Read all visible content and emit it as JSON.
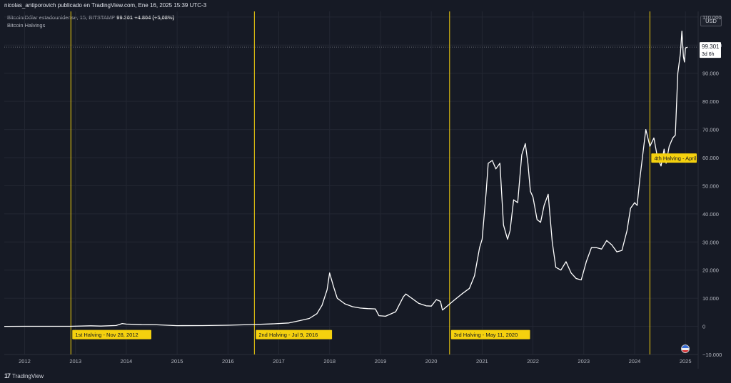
{
  "publisher_line": "nicolas_antiporovich publicado en TradingView.com, Ene 16, 2025 15:39 UTC-3",
  "legend": {
    "symbol": "Bitcoin/Dólar estadounidense, 15, BITSTAMP",
    "last_value": "99.301",
    "change": "+4.804 (+5,08%)",
    "indicator": "Bitcoin Halvings"
  },
  "currency": "USD",
  "price_label": {
    "value": "99.301",
    "countdown": "3d 6h"
  },
  "footer": {
    "logo_text": "TradingView",
    "logo_mark": "17"
  },
  "colors": {
    "background": "#161a25",
    "line": "#ffffff",
    "halving_line": "#f5d10e",
    "halving_label_bg": "#f5d10e",
    "grid": "#232733",
    "axis_text": "#b2b5be"
  },
  "chart_data": {
    "type": "line",
    "title": "",
    "xlabel": "",
    "ylabel": "",
    "xlim": [
      2011.6,
      2025.25
    ],
    "ylim": [
      -10000,
      112000
    ],
    "grid": true,
    "y_ticks": [
      {
        "value": 110000,
        "label": "110.000"
      },
      {
        "value": 100000,
        "label": "100.000"
      },
      {
        "value": 90000,
        "label": "90.000"
      },
      {
        "value": 80000,
        "label": "80.000"
      },
      {
        "value": 70000,
        "label": "70.000"
      },
      {
        "value": 60000,
        "label": "60.000"
      },
      {
        "value": 50000,
        "label": "50.000"
      },
      {
        "value": 40000,
        "label": "40.000"
      },
      {
        "value": 30000,
        "label": "30.000"
      },
      {
        "value": 20000,
        "label": "20.000"
      },
      {
        "value": 10000,
        "label": "10.000"
      },
      {
        "value": 0,
        "label": "0"
      },
      {
        "value": -10000,
        "label": "−10.000"
      }
    ],
    "x_ticks": [
      {
        "value": 2012,
        "label": "2012"
      },
      {
        "value": 2013,
        "label": "2013"
      },
      {
        "value": 2014,
        "label": "2014"
      },
      {
        "value": 2015,
        "label": "2015"
      },
      {
        "value": 2016,
        "label": "2016"
      },
      {
        "value": 2017,
        "label": "2017"
      },
      {
        "value": 2018,
        "label": "2018"
      },
      {
        "value": 2019,
        "label": "2019"
      },
      {
        "value": 2020,
        "label": "2020"
      },
      {
        "value": 2021,
        "label": "2021"
      },
      {
        "value": 2022,
        "label": "2022"
      },
      {
        "value": 2023,
        "label": "2023"
      },
      {
        "value": 2024,
        "label": "2024"
      },
      {
        "value": 2025,
        "label": "2025"
      }
    ],
    "last_price": 99301,
    "halvings": [
      {
        "x": 2012.91,
        "label": "1st Halving - Nov 28, 2012"
      },
      {
        "x": 2016.52,
        "label": "2nd Halving - Jul 9, 2016"
      },
      {
        "x": 2020.36,
        "label": "3rd Halving - May 11, 2020"
      },
      {
        "x": 2024.3,
        "label": "4th Halving - April"
      }
    ],
    "series": [
      {
        "x": [
          2011.6,
          2012.0,
          2012.5,
          2012.9,
          2013.3,
          2013.5,
          2013.8,
          2013.92,
          2014.0,
          2014.3,
          2014.6,
          2015.0,
          2015.5,
          2016.0,
          2016.5,
          2016.9,
          2017.2,
          2017.4,
          2017.6,
          2017.75,
          2017.85,
          2017.95,
          2018.0,
          2018.08,
          2018.15,
          2018.3,
          2018.45,
          2018.6,
          2018.75,
          2018.9,
          2018.97,
          2019.1,
          2019.3,
          2019.45,
          2019.5,
          2019.6,
          2019.75,
          2019.9,
          2020.0,
          2020.1,
          2020.18,
          2020.22,
          2020.3,
          2020.45,
          2020.6,
          2020.75,
          2020.85,
          2020.95,
          2021.0,
          2021.08,
          2021.12,
          2021.2,
          2021.27,
          2021.35,
          2021.42,
          2021.5,
          2021.55,
          2021.62,
          2021.7,
          2021.78,
          2021.85,
          2021.9,
          2021.95,
          2022.0,
          2022.08,
          2022.15,
          2022.22,
          2022.3,
          2022.38,
          2022.45,
          2022.55,
          2022.65,
          2022.75,
          2022.85,
          2022.95,
          2023.05,
          2023.15,
          2023.25,
          2023.35,
          2023.45,
          2023.55,
          2023.65,
          2023.75,
          2023.85,
          2023.92,
          2024.0,
          2024.05,
          2024.1,
          2024.18,
          2024.22,
          2024.3,
          2024.38,
          2024.45,
          2024.52,
          2024.58,
          2024.62,
          2024.68,
          2024.75,
          2024.8,
          2024.85,
          2024.9,
          2024.93,
          2024.96,
          2024.98,
          2025.0,
          2025.04
        ],
        "values": [
          5,
          10,
          8,
          13,
          200,
          100,
          300,
          1000,
          800,
          600,
          550,
          250,
          280,
          400,
          650,
          900,
          1200,
          2000,
          2800,
          4500,
          7500,
          13000,
          19000,
          14000,
          10000,
          8000,
          7000,
          6500,
          6300,
          6200,
          3800,
          3600,
          5200,
          10500,
          11500,
          10200,
          8200,
          7300,
          7200,
          9500,
          8900,
          5800,
          7000,
          9300,
          11500,
          13500,
          18000,
          28000,
          31000,
          48000,
          58000,
          59000,
          56000,
          58000,
          36000,
          31000,
          34000,
          45000,
          44000,
          61000,
          65000,
          58000,
          48000,
          46000,
          38000,
          37000,
          43000,
          47000,
          30000,
          21000,
          20000,
          23000,
          19000,
          17000,
          16500,
          23000,
          28000,
          28000,
          27500,
          30500,
          29000,
          26500,
          27000,
          34000,
          42000,
          44000,
          43000,
          52000,
          64000,
          70000,
          64000,
          67000,
          60000,
          57000,
          63000,
          58000,
          64000,
          67000,
          68000,
          90000,
          97000,
          105000,
          96000,
          94000,
          99000,
          99301
        ]
      }
    ]
  }
}
